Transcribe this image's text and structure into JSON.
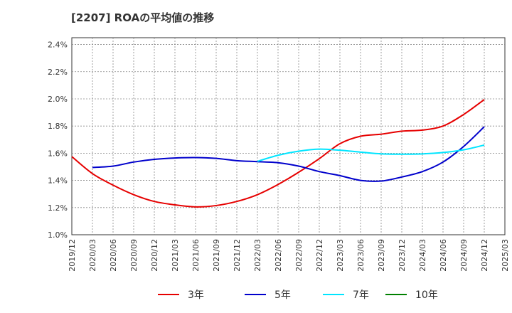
{
  "chart_data": {
    "type": "line",
    "title": "[2207]  ROAの平均値の推移",
    "xlabel": "",
    "ylabel": "",
    "x": [
      "2019/12",
      "2020/03",
      "2020/06",
      "2020/09",
      "2020/12",
      "2021/03",
      "2021/06",
      "2021/09",
      "2021/12",
      "2022/03",
      "2022/06",
      "2022/09",
      "2022/12",
      "2023/03",
      "2023/06",
      "2023/09",
      "2023/12",
      "2024/03",
      "2024/06",
      "2024/09",
      "2024/12",
      "2025/03"
    ],
    "x_ticks": [
      "2019/12",
      "2020/03",
      "2020/06",
      "2020/09",
      "2020/12",
      "2021/03",
      "2021/06",
      "2021/09",
      "2021/12",
      "2022/03",
      "2022/06",
      "2022/09",
      "2022/12",
      "2023/03",
      "2023/06",
      "2023/09",
      "2023/12",
      "2024/03",
      "2024/06",
      "2024/09",
      "2024/12",
      "2025/03"
    ],
    "y_ticks": [
      "1.0%",
      "1.2%",
      "1.4%",
      "1.6%",
      "1.8%",
      "2.0%",
      "2.2%",
      "2.4%"
    ],
    "ylim": [
      1.0,
      2.45
    ],
    "grid": true,
    "legend_position": "bottom",
    "series": [
      {
        "name": "3年",
        "color": "#e60000",
        "values": [
          1.575,
          1.45,
          1.365,
          1.295,
          1.245,
          1.22,
          1.205,
          1.215,
          1.245,
          1.295,
          1.37,
          1.46,
          1.56,
          1.67,
          1.725,
          1.74,
          1.762,
          1.77,
          1.8,
          1.885,
          1.995,
          null
        ]
      },
      {
        "name": "5年",
        "color": "#0000cc",
        "values": [
          null,
          1.495,
          1.505,
          1.535,
          1.555,
          1.565,
          1.568,
          1.562,
          1.545,
          1.538,
          1.53,
          1.505,
          1.465,
          1.435,
          1.4,
          1.395,
          1.425,
          1.465,
          1.535,
          1.65,
          1.795,
          null
        ]
      },
      {
        "name": "7年",
        "color": "#00e5ff",
        "values": [
          null,
          null,
          null,
          null,
          null,
          null,
          null,
          null,
          null,
          1.54,
          1.585,
          1.615,
          1.63,
          1.622,
          1.608,
          1.595,
          1.593,
          1.595,
          1.605,
          1.625,
          1.66,
          null
        ]
      },
      {
        "name": "10年",
        "color": "#008000",
        "values": [
          null,
          null,
          null,
          null,
          null,
          null,
          null,
          null,
          null,
          null,
          null,
          null,
          null,
          null,
          null,
          null,
          null,
          null,
          null,
          null,
          null,
          null
        ]
      }
    ]
  }
}
